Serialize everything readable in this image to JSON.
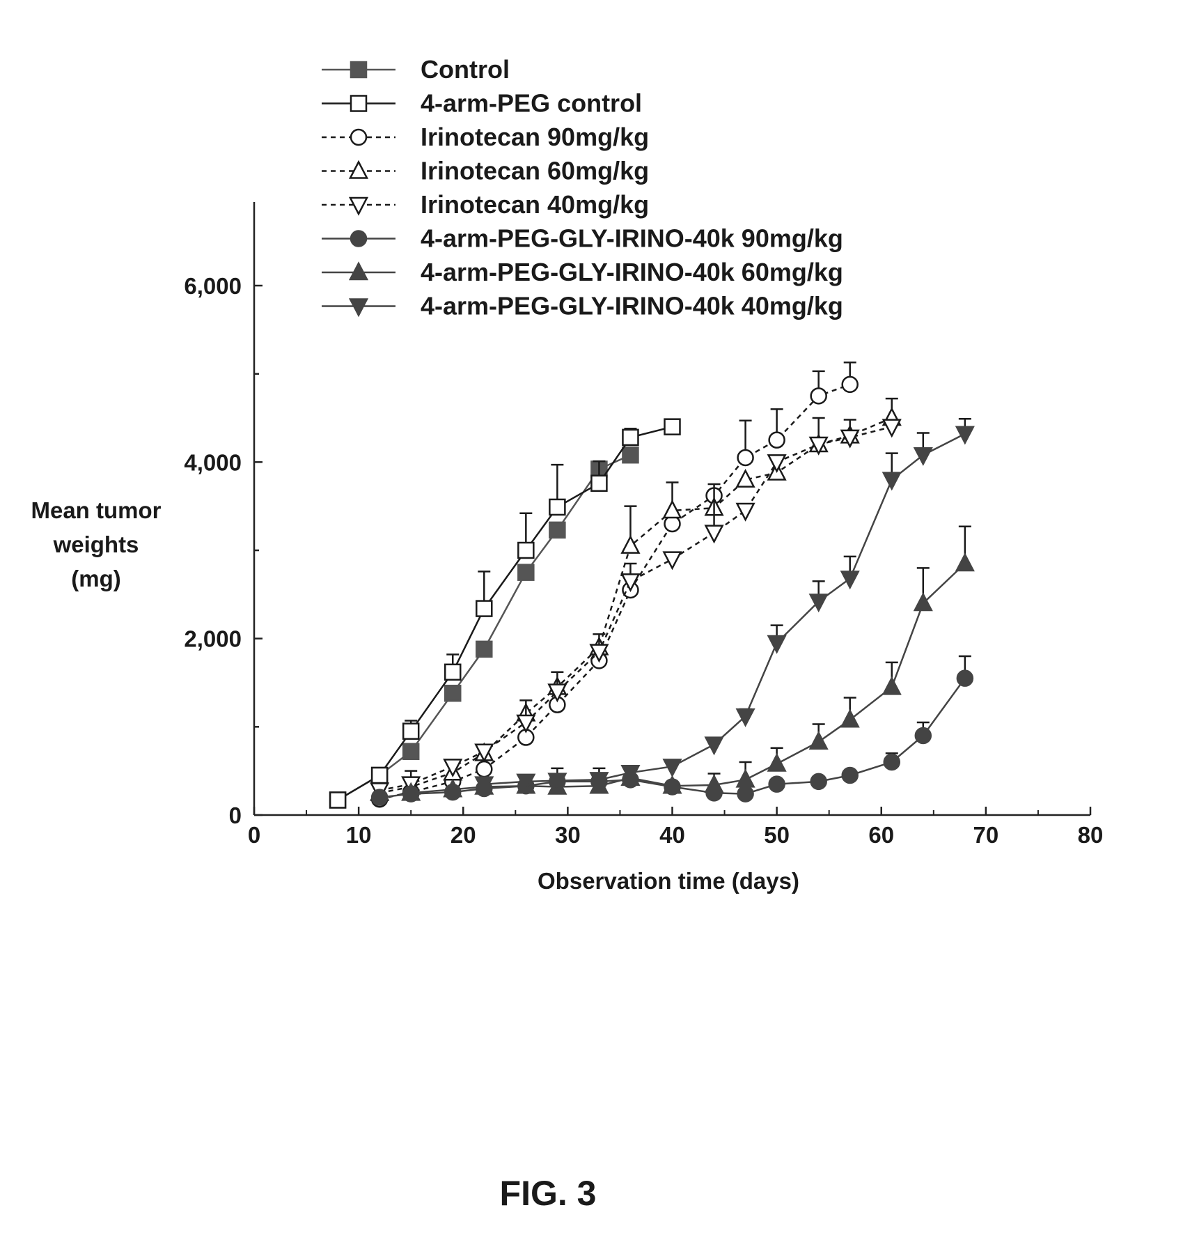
{
  "chart_data": {
    "type": "line",
    "title": "",
    "xlabel": "Observation time (days)",
    "ylabel_lines": [
      "Mean tumor",
      "weights",
      "(mg)"
    ],
    "xlim": [
      0,
      80
    ],
    "ylim": [
      0,
      6800
    ],
    "xticks": [
      0,
      10,
      20,
      30,
      40,
      50,
      60,
      70,
      80
    ],
    "xtick_labels": [
      "0",
      "10",
      "20",
      "30",
      "40",
      "50",
      "60",
      "70",
      "80"
    ],
    "yticks": [
      0,
      2000,
      4000,
      6000
    ],
    "ytick_labels": [
      "0",
      "2,000",
      "4,000",
      "6,000"
    ],
    "grid": false,
    "legend_position": "top",
    "series": [
      {
        "name": "Control",
        "marker": "square-filled",
        "line": "solid",
        "color": "#555555",
        "x": [
          8,
          12,
          15,
          19,
          22,
          26,
          29,
          33,
          36
        ],
        "y": [
          170,
          450,
          720,
          1380,
          1880,
          2750,
          3230,
          3920,
          4080
        ],
        "err": [
          0,
          0,
          0,
          0,
          0,
          0,
          0,
          0,
          0
        ]
      },
      {
        "name": "4-arm-PEG control",
        "marker": "square-open",
        "line": "solid",
        "color": "#1a1a1a",
        "x": [
          8,
          12,
          15,
          19,
          22,
          26,
          29,
          33,
          36,
          40
        ],
        "y": [
          170,
          450,
          950,
          1620,
          2340,
          3000,
          3490,
          3760,
          4280,
          4400
        ],
        "err": [
          0,
          0,
          120,
          200,
          420,
          420,
          480,
          250,
          100,
          0
        ]
      },
      {
        "name": "Irinotecan 90mg/kg",
        "marker": "circle-open",
        "line": "dashed",
        "color": "#1a1a1a",
        "x": [
          12,
          15,
          19,
          22,
          26,
          29,
          33,
          36,
          40,
          44,
          47,
          50,
          54,
          57
        ],
        "y": [
          180,
          260,
          380,
          520,
          880,
          1250,
          1750,
          2550,
          3300,
          3620,
          4050,
          4250,
          4750,
          4880
        ],
        "err": [
          0,
          0,
          0,
          0,
          0,
          0,
          0,
          0,
          0,
          0,
          420,
          350,
          280,
          250
        ]
      },
      {
        "name": "Irinotecan 60mg/kg",
        "marker": "triangle-up-open",
        "line": "dashed",
        "color": "#1a1a1a",
        "x": [
          12,
          15,
          19,
          22,
          26,
          29,
          33,
          36,
          40,
          44,
          47,
          50,
          54,
          57,
          61
        ],
        "y": [
          250,
          320,
          480,
          700,
          1150,
          1450,
          1900,
          3050,
          3450,
          3480,
          3800,
          3880,
          4200,
          4300,
          4500
        ],
        "err": [
          0,
          0,
          0,
          0,
          0,
          0,
          0,
          450,
          320,
          0,
          0,
          0,
          0,
          0,
          220
        ]
      },
      {
        "name": "Irinotecan 40mg/kg",
        "marker": "triangle-down-open",
        "line": "dashed",
        "color": "#1a1a1a",
        "x": [
          12,
          15,
          19,
          22,
          26,
          29,
          33,
          36,
          40,
          44,
          47,
          50,
          54,
          57,
          61
        ],
        "y": [
          280,
          350,
          550,
          720,
          1050,
          1400,
          1850,
          2650,
          2900,
          3200,
          3450,
          4000,
          4200,
          4280,
          4400
        ],
        "err": [
          0,
          150,
          0,
          0,
          250,
          220,
          200,
          200,
          0,
          550,
          0,
          0,
          300,
          200,
          0
        ]
      },
      {
        "name": "4-arm-PEG-GLY-IRINO-40k 90mg/kg",
        "marker": "circle-filled",
        "line": "solid",
        "color": "#444444",
        "x": [
          12,
          15,
          19,
          22,
          26,
          29,
          33,
          36,
          40,
          44,
          47,
          50,
          54,
          57,
          61,
          64,
          68
        ],
        "y": [
          200,
          240,
          260,
          300,
          330,
          380,
          380,
          400,
          320,
          250,
          240,
          350,
          380,
          450,
          600,
          900,
          1550
        ],
        "err": [
          0,
          0,
          0,
          0,
          0,
          150,
          150,
          0,
          0,
          220,
          0,
          0,
          0,
          0,
          100,
          150,
          250
        ]
      },
      {
        "name": "4-arm-PEG-GLY-IRINO-40k 60mg/kg",
        "marker": "triangle-up-filled",
        "line": "solid",
        "color": "#444444",
        "x": [
          15,
          19,
          22,
          26,
          29,
          33,
          36,
          40,
          44,
          47,
          50,
          54,
          57,
          61,
          64,
          68
        ],
        "y": [
          250,
          290,
          320,
          330,
          320,
          330,
          420,
          330,
          340,
          400,
          580,
          830,
          1080,
          1450,
          2400,
          2850
        ],
        "err": [
          0,
          0,
          0,
          0,
          0,
          0,
          0,
          0,
          0,
          200,
          180,
          200,
          250,
          280,
          400,
          420
        ]
      },
      {
        "name": "4-arm-PEG-GLY-IRINO-40k 40mg/kg",
        "marker": "triangle-down-filled",
        "line": "solid",
        "color": "#444444",
        "x": [
          22,
          26,
          29,
          33,
          36,
          40,
          44,
          47,
          50,
          54,
          57,
          61,
          64,
          68
        ],
        "y": [
          350,
          380,
          390,
          400,
          480,
          550,
          800,
          1120,
          1950,
          2420,
          2680,
          3800,
          4080,
          4320
        ],
        "err": [
          0,
          0,
          0,
          0,
          0,
          0,
          0,
          80,
          200,
          230,
          250,
          300,
          250,
          170
        ]
      }
    ]
  },
  "figure_caption": "FIG. 3"
}
